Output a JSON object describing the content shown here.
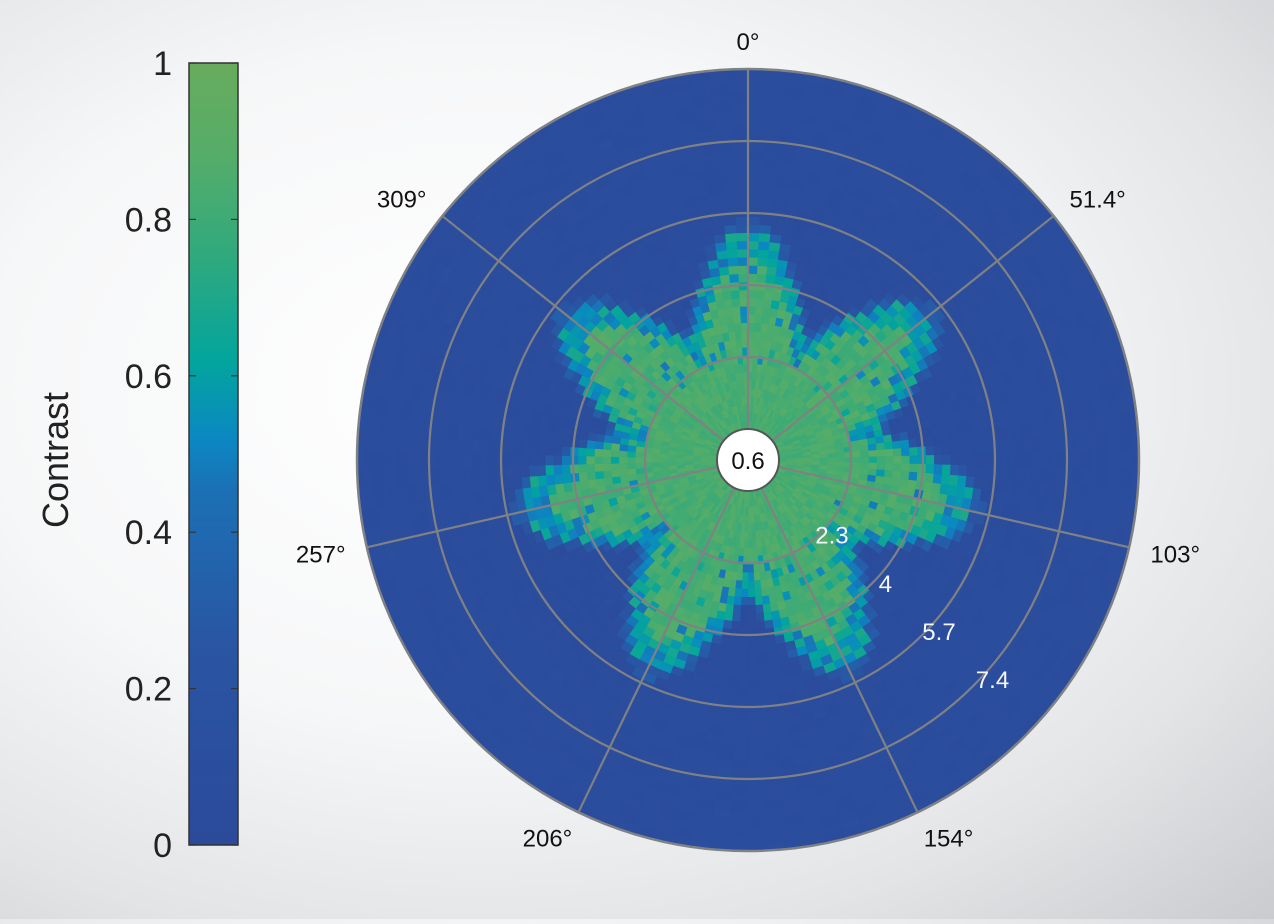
{
  "chart_data": {
    "type": "heatmap",
    "subtype": "polar",
    "title": "",
    "colorbar": {
      "label": "Contrast",
      "range": [
        0,
        1
      ],
      "ticks": [
        0,
        0.2,
        0.4,
        0.6,
        0.8,
        1
      ],
      "tick_labels": [
        "0",
        "0.2",
        "0.4",
        "0.6",
        "0.8",
        "1"
      ],
      "colors": [
        {
          "stop": 0.0,
          "color": "#2b4a9a"
        },
        {
          "stop": 0.25,
          "color": "#2a55a3"
        },
        {
          "stop": 0.45,
          "color": "#1c6fb4"
        },
        {
          "stop": 0.52,
          "color": "#0b88c2"
        },
        {
          "stop": 0.62,
          "color": "#03a59d"
        },
        {
          "stop": 0.75,
          "color": "#2fa97e"
        },
        {
          "stop": 0.88,
          "color": "#55ad69"
        },
        {
          "stop": 1.0,
          "color": "#68ab5d"
        }
      ]
    },
    "angular_axis": {
      "direction": "clockwise",
      "zero_at": "top",
      "spokes_deg": [
        0,
        51.4,
        102.9,
        154.3,
        205.7,
        257.1,
        308.6
      ],
      "tick_labels": [
        "0°",
        "51.4°",
        "103°",
        "154°",
        "206°",
        "257°",
        "309°"
      ]
    },
    "radial_axis": {
      "range": [
        0.6,
        9.1
      ],
      "rings": [
        2.3,
        4,
        5.7,
        7.4
      ],
      "tick_labels": [
        "0.6",
        "2.3",
        "4",
        "5.7",
        "7.4"
      ],
      "tick_label_angle_deg": 132
    },
    "lobes": {
      "count": 7,
      "centers_deg": [
        0,
        51.4,
        102.9,
        154.3,
        205.7,
        257.1,
        308.6
      ],
      "outer_radius_max": 5.0,
      "outer_radius_min": 2.7,
      "high_contrast_value": 0.85,
      "background_value": 0.05
    }
  }
}
